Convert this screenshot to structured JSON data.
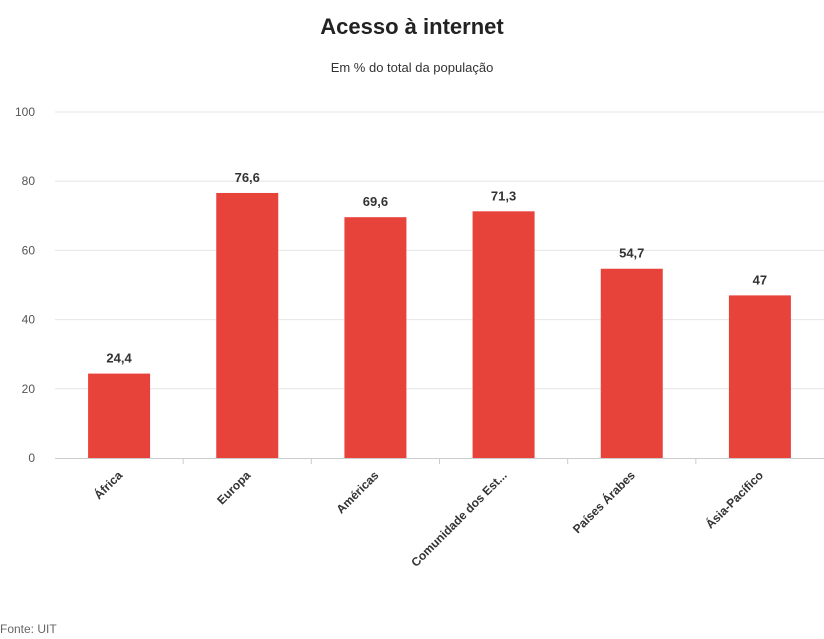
{
  "chart_data": {
    "type": "bar",
    "title": "Acesso à internet",
    "subtitle": "Em % do total da população",
    "categories": [
      "África",
      "Europa",
      "Américas",
      "Comunidade dos Est...",
      "Países Árabes",
      "Ásia-Pacífico"
    ],
    "values": [
      24.4,
      76.6,
      69.6,
      71.3,
      54.7,
      47
    ],
    "value_labels": [
      "24,4",
      "76,6",
      "69,6",
      "71,3",
      "54,7",
      "47"
    ],
    "ylim": [
      0,
      100
    ],
    "yticks": [
      0,
      20,
      40,
      60,
      80,
      100
    ],
    "grid": true,
    "bar_color": "#e8433b",
    "source": "Fonte: UIT"
  }
}
